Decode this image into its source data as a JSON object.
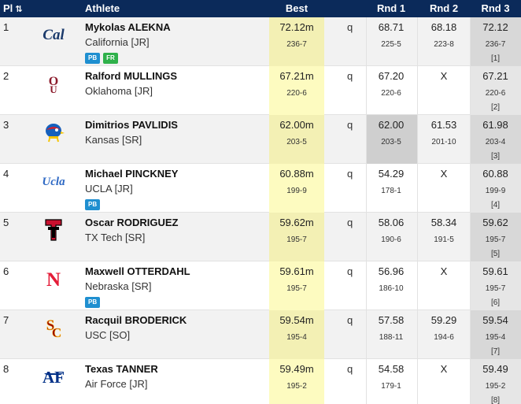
{
  "header": {
    "place": "Pl",
    "sort_icon": "sort-icon",
    "athlete": "Athlete",
    "best": "Best",
    "rnd1": "Rnd 1",
    "rnd2": "Rnd 2",
    "rnd3": "Rnd 3"
  },
  "colors": {
    "header_bg": "#0b2a5a",
    "best_highlight": "#fdfbc0",
    "pb_badge": "#1f8fd0",
    "fr_badge": "#2fb14b"
  },
  "rows": [
    {
      "place": "1",
      "logo": "cal-logo-icon",
      "name": "Mykolas ALEKNA",
      "team": "California [JR]",
      "badges": [
        "PB",
        "FR"
      ],
      "best": "72.12m",
      "best_imp": "236-7",
      "q": "q",
      "r1": "68.71",
      "r1_imp": "225-5",
      "r2": "68.18",
      "r2_imp": "223-8",
      "r3": "72.12",
      "r3_imp": "236-7",
      "r3_rank": "[1]"
    },
    {
      "place": "2",
      "logo": "oklahoma-logo-icon",
      "name": "Ralford MULLINGS",
      "team": "Oklahoma [JR]",
      "badges": [],
      "best": "67.21m",
      "best_imp": "220-6",
      "q": "q",
      "r1": "67.20",
      "r1_imp": "220-6",
      "r2": "X",
      "r2_imp": "",
      "r3": "67.21",
      "r3_imp": "220-6",
      "r3_rank": "[2]"
    },
    {
      "place": "3",
      "logo": "kansas-jayhawk-icon",
      "name": "Dimitrios PAVLIDIS",
      "team": "Kansas [SR]",
      "badges": [],
      "best": "62.00m",
      "best_imp": "203-5",
      "q": "q",
      "r1": "62.00",
      "r1_imp": "203-5",
      "r2": "61.53",
      "r2_imp": "201-10",
      "r3": "61.98",
      "r3_imp": "203-4",
      "r3_rank": "[3]"
    },
    {
      "place": "4",
      "logo": "ucla-logo-icon",
      "name": "Michael PINCKNEY",
      "team": "UCLA [JR]",
      "badges": [
        "PB"
      ],
      "best": "60.88m",
      "best_imp": "199-9",
      "q": "q",
      "r1": "54.29",
      "r1_imp": "178-1",
      "r2": "X",
      "r2_imp": "",
      "r3": "60.88",
      "r3_imp": "199-9",
      "r3_rank": "[4]"
    },
    {
      "place": "5",
      "logo": "texas-tech-logo-icon",
      "name": "Oscar RODRIGUEZ",
      "team": "TX Tech [SR]",
      "badges": [],
      "best": "59.62m",
      "best_imp": "195-7",
      "q": "q",
      "r1": "58.06",
      "r1_imp": "190-6",
      "r2": "58.34",
      "r2_imp": "191-5",
      "r3": "59.62",
      "r3_imp": "195-7",
      "r3_rank": "[5]"
    },
    {
      "place": "6",
      "logo": "nebraska-logo-icon",
      "name": "Maxwell OTTERDAHL",
      "team": "Nebraska [SR]",
      "badges": [
        "PB"
      ],
      "best": "59.61m",
      "best_imp": "195-7",
      "q": "q",
      "r1": "56.96",
      "r1_imp": "186-10",
      "r2": "X",
      "r2_imp": "",
      "r3": "59.61",
      "r3_imp": "195-7",
      "r3_rank": "[6]"
    },
    {
      "place": "7",
      "logo": "usc-logo-icon",
      "name": "Racquil BRODERICK",
      "team": "USC [SO]",
      "badges": [],
      "best": "59.54m",
      "best_imp": "195-4",
      "q": "q",
      "r1": "57.58",
      "r1_imp": "188-11",
      "r2": "59.29",
      "r2_imp": "194-6",
      "r3": "59.54",
      "r3_imp": "195-4",
      "r3_rank": "[7]"
    },
    {
      "place": "8",
      "logo": "air-force-logo-icon",
      "name": "Texas TANNER",
      "team": "Air Force [JR]",
      "badges": [],
      "best": "59.49m",
      "best_imp": "195-2",
      "q": "q",
      "r1": "54.58",
      "r1_imp": "179-1",
      "r2": "X",
      "r2_imp": "",
      "r3": "59.49",
      "r3_imp": "195-2",
      "r3_rank": "[8]"
    }
  ]
}
